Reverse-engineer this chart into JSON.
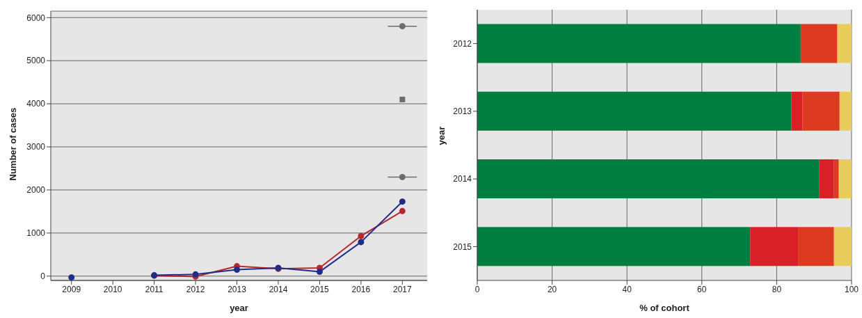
{
  "chart_data": [
    {
      "type": "line",
      "xlabel": "year",
      "ylabel": "Number of cases",
      "xlim": [
        2008.5,
        2017.6
      ],
      "xticks": [
        2009,
        2010,
        2011,
        2012,
        2013,
        2014,
        2015,
        2016,
        2017
      ],
      "ylim": [
        -100,
        6150
      ],
      "yticks": [
        0,
        1000,
        2000,
        3000,
        4000,
        5000,
        6000
      ],
      "grid": "y",
      "marker": "circle",
      "line_style": "solid",
      "series": [
        {
          "color": "#b52a2e",
          "x": [
            2011,
            2012,
            2013,
            2014,
            2015,
            2016,
            2017
          ],
          "values": [
            10,
            -10,
            230,
            170,
            190,
            930,
            1510
          ]
        },
        {
          "color": "#1f2d86",
          "x": [
            2009,
            2010,
            2011,
            2012,
            2013,
            2014,
            2015,
            2016,
            2017
          ],
          "values": [
            -30,
            null,
            20,
            40,
            150,
            190,
            100,
            790,
            1730
          ]
        },
        {
          "type": "scatter",
          "color": "#6b6b6b",
          "marker": "circle",
          "x": [
            2017,
            2017
          ],
          "values": [
            5800,
            2300
          ],
          "xerrors": [
            0.35,
            0.35
          ]
        },
        {
          "type": "scatter",
          "color": "#6b6b6b",
          "marker": "square",
          "x": [
            2017
          ],
          "values": [
            4100
          ]
        }
      ]
    },
    {
      "type": "bar",
      "orientation": "horizontal",
      "stacked": true,
      "xlabel": "% of cohort",
      "ylabel": "year",
      "categories": [
        "2012",
        "2013",
        "2014",
        "2015"
      ],
      "xlim": [
        0,
        100
      ],
      "xticks": [
        0,
        20,
        40,
        60,
        80,
        100
      ],
      "grid": "x",
      "series": [
        {
          "color": "#007f40",
          "values": [
            86.4,
            83.9,
            91.4,
            72.9
          ]
        },
        {
          "color": "#d92027",
          "values": [
            0,
            3,
            3.8,
            12.8
          ]
        },
        {
          "color": "#dd3a22",
          "values": [
            9.8,
            9.9,
            1.4,
            9.6
          ]
        },
        {
          "color": "#e8cc5c",
          "values": [
            3.8,
            3.2,
            3.4,
            4.7
          ]
        }
      ]
    }
  ]
}
